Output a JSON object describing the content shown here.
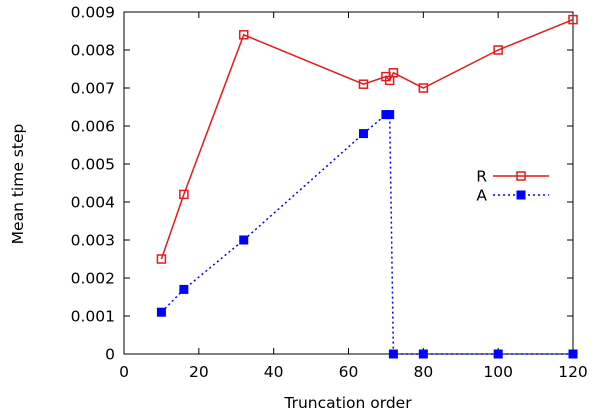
{
  "chart_data": {
    "type": "line",
    "xlabel": "Truncation order",
    "ylabel": "Mean time step",
    "xlim": [
      0,
      120
    ],
    "ylim": [
      0,
      0.009
    ],
    "xticks": [
      "0",
      "20",
      "40",
      "60",
      "80",
      "100",
      "120"
    ],
    "yticks": [
      "0",
      "0.001",
      "0.002",
      "0.003",
      "0.004",
      "0.005",
      "0.006",
      "0.007",
      "0.008",
      "0.009"
    ],
    "grid": false,
    "legend_position": "right",
    "series": [
      {
        "name": "R",
        "color": "#e41a1c",
        "line_style": "solid",
        "marker": "open-square",
        "x": [
          10,
          16,
          32,
          64,
          70,
          71,
          72,
          80,
          100,
          120
        ],
        "y": [
          0.0025,
          0.0042,
          0.0084,
          0.0071,
          0.0073,
          0.0072,
          0.0074,
          0.007,
          0.008,
          0.0088
        ]
      },
      {
        "name": "A",
        "color": "#0000ff",
        "line_style": "dotted",
        "marker": "filled-square",
        "x": [
          10,
          16,
          32,
          64,
          70,
          71,
          72,
          80,
          100,
          120
        ],
        "y": [
          0.0011,
          0.0017,
          0.003,
          0.0058,
          0.0063,
          0.0063,
          0.0,
          0.0,
          0.0,
          0.0
        ]
      }
    ]
  }
}
